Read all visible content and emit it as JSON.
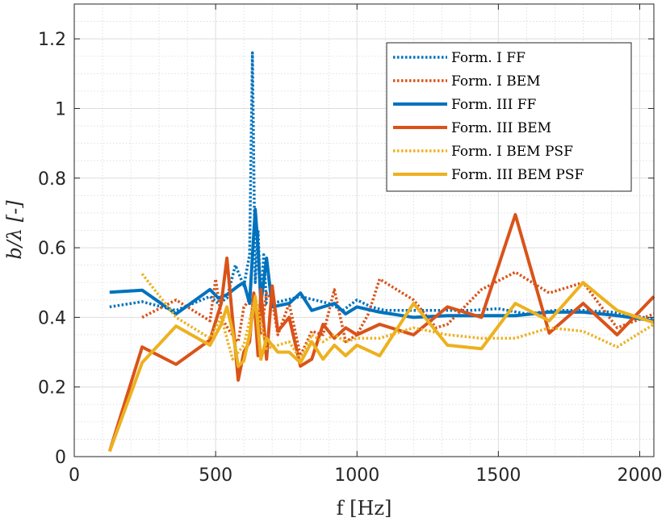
{
  "chart_data": {
    "type": "line",
    "xlabel": "f [Hz]",
    "ylabel": "b/λ [-]",
    "xlim": [
      0,
      2050
    ],
    "ylim": [
      0,
      1.3
    ],
    "xticks": [
      0,
      500,
      1000,
      1500,
      2000
    ],
    "yticks": [
      0,
      0.2,
      0.4,
      0.6,
      0.8,
      1,
      1.2
    ],
    "xtick_labels": [
      "0",
      "500",
      "1000",
      "1500",
      "2000"
    ],
    "ytick_labels": [
      "0",
      "0.2",
      "0.4",
      "0.6",
      "0.8",
      "1",
      "1.2"
    ],
    "grid": true,
    "minor_grid": true,
    "legend_position": "top-right",
    "series": [
      {
        "name": "Form. I FF",
        "color": "#0072BD",
        "style": "dotted",
        "x": [
          125,
          240,
          360,
          480,
          510,
          540,
          570,
          600,
          620,
          630,
          640,
          650,
          660,
          670,
          680,
          700,
          750,
          800,
          850,
          900,
          950,
          1000,
          1050,
          1100,
          1200,
          1300,
          1400,
          1500,
          1600,
          1700,
          1800,
          1900,
          2050
        ],
        "y": [
          0.43,
          0.445,
          0.42,
          0.46,
          0.44,
          0.455,
          0.55,
          0.49,
          0.58,
          1.16,
          0.5,
          0.65,
          0.44,
          0.58,
          0.44,
          0.44,
          0.45,
          0.46,
          0.45,
          0.44,
          0.42,
          0.45,
          0.43,
          0.42,
          0.42,
          0.42,
          0.42,
          0.425,
          0.41,
          0.42,
          0.42,
          0.415,
          0.395
        ]
      },
      {
        "name": "Form. I BEM",
        "color": "#D95319",
        "style": "dotted",
        "x": [
          240,
          360,
          480,
          500,
          520,
          550,
          580,
          600,
          620,
          640,
          660,
          680,
          700,
          720,
          760,
          800,
          840,
          880,
          920,
          960,
          1000,
          1040,
          1080,
          1200,
          1280,
          1320,
          1440,
          1560,
          1680,
          1800,
          1920,
          2050
        ],
        "y": [
          0.4,
          0.45,
          0.39,
          0.51,
          0.4,
          0.36,
          0.33,
          0.43,
          0.45,
          0.45,
          0.35,
          0.47,
          0.45,
          0.35,
          0.44,
          0.29,
          0.36,
          0.35,
          0.48,
          0.33,
          0.35,
          0.41,
          0.51,
          0.45,
          0.37,
          0.38,
          0.48,
          0.53,
          0.47,
          0.5,
          0.37,
          0.41
        ]
      },
      {
        "name": "Form. III FF",
        "color": "#0072BD",
        "style": "solid",
        "x": [
          125,
          240,
          360,
          480,
          510,
          540,
          580,
          600,
          620,
          640,
          650,
          660,
          680,
          700,
          760,
          800,
          840,
          880,
          920,
          960,
          1000,
          1080,
          1200,
          1320,
          1440,
          1560,
          1680,
          1800,
          1920,
          2050
        ],
        "y": [
          0.472,
          0.478,
          0.41,
          0.48,
          0.455,
          0.465,
          0.49,
          0.5,
          0.44,
          0.71,
          0.6,
          0.44,
          0.57,
          0.43,
          0.44,
          0.47,
          0.42,
          0.43,
          0.44,
          0.41,
          0.43,
          0.415,
          0.4,
          0.405,
          0.405,
          0.405,
          0.415,
          0.415,
          0.405,
          0.39
        ]
      },
      {
        "name": "Form. III BEM",
        "color": "#D95319",
        "style": "solid",
        "x": [
          125,
          240,
          360,
          480,
          520,
          540,
          580,
          600,
          620,
          635,
          650,
          660,
          680,
          700,
          720,
          760,
          800,
          840,
          880,
          920,
          960,
          1000,
          1080,
          1200,
          1320,
          1440,
          1560,
          1680,
          1800,
          1920,
          2050
        ],
        "y": [
          0.015,
          0.315,
          0.265,
          0.335,
          0.44,
          0.57,
          0.22,
          0.3,
          0.33,
          0.47,
          0.29,
          0.48,
          0.28,
          0.49,
          0.36,
          0.4,
          0.26,
          0.28,
          0.38,
          0.34,
          0.37,
          0.35,
          0.38,
          0.35,
          0.43,
          0.4,
          0.695,
          0.355,
          0.44,
          0.35,
          0.46
        ]
      },
      {
        "name": "Form. I BEM PSF",
        "color": "#EDB120",
        "style": "dotted",
        "x": [
          240,
          360,
          480,
          520,
          560,
          600,
          640,
          680,
          720,
          760,
          800,
          840,
          880,
          920,
          960,
          1000,
          1080,
          1200,
          1320,
          1440,
          1560,
          1680,
          1800,
          1920,
          2050
        ],
        "y": [
          0.525,
          0.4,
          0.34,
          0.4,
          0.28,
          0.32,
          0.46,
          0.31,
          0.32,
          0.33,
          0.28,
          0.35,
          0.33,
          0.35,
          0.33,
          0.34,
          0.34,
          0.37,
          0.35,
          0.34,
          0.34,
          0.37,
          0.36,
          0.315,
          0.38
        ]
      },
      {
        "name": "Form. III BEM PSF",
        "color": "#EDB120",
        "style": "solid",
        "x": [
          125,
          240,
          360,
          480,
          520,
          540,
          560,
          580,
          600,
          620,
          640,
          660,
          680,
          720,
          760,
          800,
          840,
          880,
          920,
          960,
          1000,
          1080,
          1200,
          1320,
          1440,
          1560,
          1680,
          1800,
          1920,
          2050
        ],
        "y": [
          0.015,
          0.27,
          0.375,
          0.32,
          0.38,
          0.43,
          0.36,
          0.26,
          0.275,
          0.35,
          0.46,
          0.28,
          0.34,
          0.3,
          0.3,
          0.27,
          0.33,
          0.28,
          0.32,
          0.29,
          0.32,
          0.29,
          0.44,
          0.32,
          0.31,
          0.44,
          0.39,
          0.5,
          0.42,
          0.385
        ]
      }
    ]
  }
}
